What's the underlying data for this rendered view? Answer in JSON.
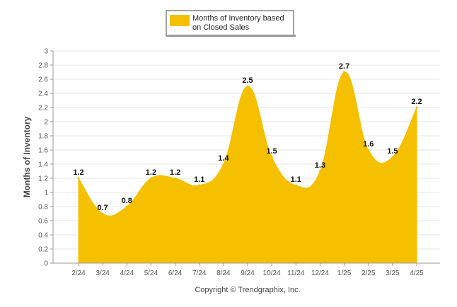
{
  "chart_data": {
    "type": "area",
    "categories": [
      "2/24",
      "3/24",
      "4/24",
      "5/24",
      "6/24",
      "7/24",
      "8/24",
      "9/24",
      "10/24",
      "11/24",
      "12/24",
      "1/25",
      "2/25",
      "3/25",
      "4/25"
    ],
    "series": [
      {
        "name": "Months of Inventory based on Closed Sales",
        "values": [
          1.2,
          0.7,
          0.8,
          1.2,
          1.2,
          1.1,
          1.4,
          2.5,
          1.5,
          1.1,
          1.3,
          2.7,
          1.6,
          1.5,
          2.2
        ],
        "color": "#F5C000"
      }
    ],
    "data_labels": [
      "1.2",
      "0.7",
      "0.8",
      "1.2",
      "1.2",
      "1.1",
      "1.4",
      "2.5",
      "1.5",
      "1.1",
      "1.3",
      "2.7",
      "1.6",
      "1.5",
      "2.2"
    ],
    "ylabel": "Months of Inventory",
    "xlabel": "",
    "ylim": [
      0,
      3
    ],
    "yticks": [
      "0",
      "0.2",
      "0.4",
      "0.6",
      "0.8",
      "1",
      "1.2",
      "1.4",
      "1.6",
      "1.8",
      "2",
      "2.2",
      "2.4",
      "2.6",
      "2.8",
      "3"
    ],
    "grid": true,
    "legend_position": "top-center"
  },
  "legend": {
    "line1": "Months of Inventory based",
    "line2": "on Closed Sales"
  },
  "footer": {
    "copyright": "Copyright © Trendgraphix, Inc."
  }
}
